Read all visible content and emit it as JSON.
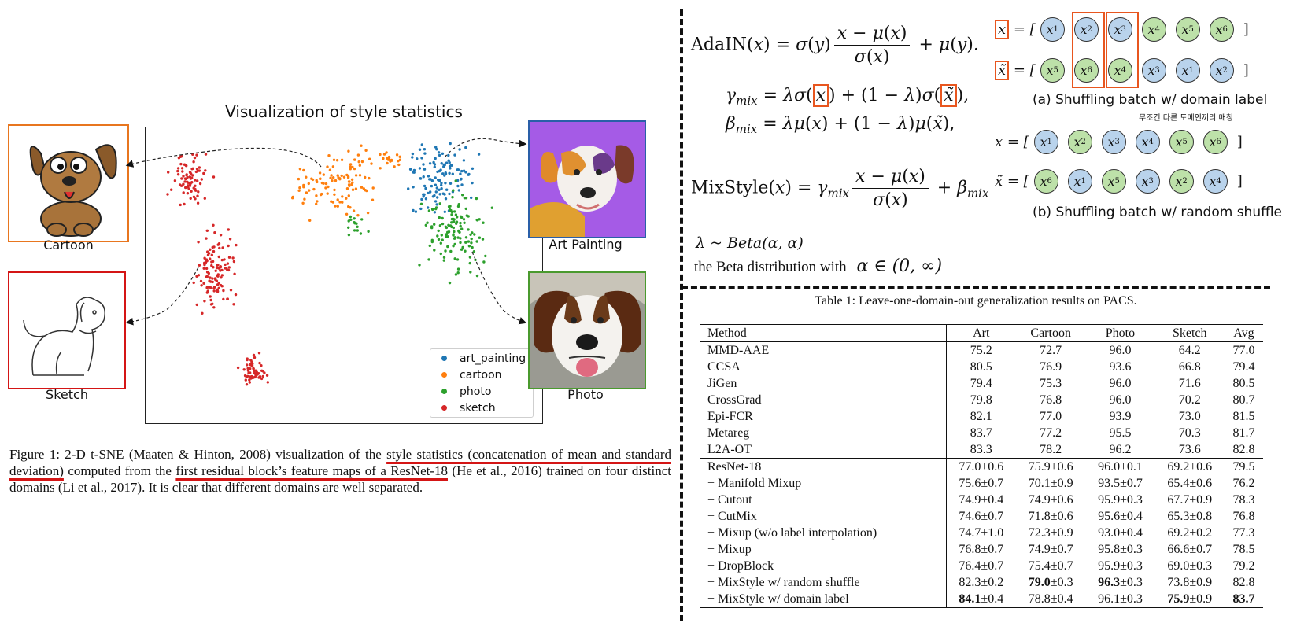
{
  "left": {
    "plot_title": "Visualization of style statistics",
    "images": {
      "cartoon": "Cartoon",
      "sketch": "Sketch",
      "art_painting": "Art Painting",
      "photo": "Photo"
    },
    "legend": [
      "art_painting",
      "cartoon",
      "photo",
      "sketch"
    ],
    "colors": {
      "art_painting": "#1f77b4",
      "cartoon": "#ff7f0e",
      "photo": "#2ca02c",
      "sketch": "#d62728",
      "cartoon_border": "#e8761f",
      "sketch_border": "#d41515",
      "art_border": "#2a5fa8",
      "photo_border": "#4a9a2e"
    },
    "caption": {
      "p1": "Figure 1: 2-D t-SNE (Maaten & Hinton, 2008) visualization of the ",
      "u1": "style statistics (concatenation of mean and standard deviation)",
      "p2": " computed from the ",
      "u2": "first residual block’s feature maps of a ResNet-18",
      "p3": " (He et al., 2016) trained on four distinct domains (Li et al., 2017). It is clear that different domains are well separated."
    }
  },
  "equations": {
    "beta_line1": "λ ~ Beta(α, α)",
    "beta_line2_text": "the Beta distribution  with",
    "beta_line2_math": "α ∈ (0, ∞)"
  },
  "shuffle": {
    "a_caption": "(a) Shuffling batch w/ domain label",
    "korean_note": "무조건 다른 도메인끼리 매칭",
    "b_caption": "(b) Shuffling batch w/ random shuffle",
    "a_x": [
      {
        "i": "1",
        "c": "blue"
      },
      {
        "i": "2",
        "c": "blue"
      },
      {
        "i": "3",
        "c": "blue"
      },
      {
        "i": "4",
        "c": "green"
      },
      {
        "i": "5",
        "c": "green"
      },
      {
        "i": "6",
        "c": "green"
      }
    ],
    "a_xt": [
      {
        "i": "5",
        "c": "green"
      },
      {
        "i": "6",
        "c": "green"
      },
      {
        "i": "4",
        "c": "green"
      },
      {
        "i": "3",
        "c": "blue"
      },
      {
        "i": "1",
        "c": "blue"
      },
      {
        "i": "2",
        "c": "blue"
      }
    ],
    "b_x": [
      {
        "i": "1",
        "c": "blue"
      },
      {
        "i": "2",
        "c": "green"
      },
      {
        "i": "3",
        "c": "blue"
      },
      {
        "i": "4",
        "c": "blue"
      },
      {
        "i": "5",
        "c": "green"
      },
      {
        "i": "6",
        "c": "green"
      }
    ],
    "b_xt": [
      {
        "i": "6",
        "c": "green"
      },
      {
        "i": "1",
        "c": "blue"
      },
      {
        "i": "5",
        "c": "green"
      },
      {
        "i": "3",
        "c": "blue"
      },
      {
        "i": "2",
        "c": "green"
      },
      {
        "i": "4",
        "c": "blue"
      }
    ]
  },
  "table": {
    "caption": "Table 1: Leave-one-domain-out generalization results on PACS.",
    "headers": [
      "Method",
      "Art",
      "Cartoon",
      "Photo",
      "Sketch",
      "Avg"
    ],
    "group1": [
      [
        "MMD-AAE",
        "75.2",
        "72.7",
        "96.0",
        "64.2",
        "77.0"
      ],
      [
        "CCSA",
        "80.5",
        "76.9",
        "93.6",
        "66.8",
        "79.4"
      ],
      [
        "JiGen",
        "79.4",
        "75.3",
        "96.0",
        "71.6",
        "80.5"
      ],
      [
        "CrossGrad",
        "79.8",
        "76.8",
        "96.0",
        "70.2",
        "80.7"
      ],
      [
        "Epi-FCR",
        "82.1",
        "77.0",
        "93.9",
        "73.0",
        "81.5"
      ],
      [
        "Metareg",
        "83.7",
        "77.2",
        "95.5",
        "70.3",
        "81.7"
      ],
      [
        "L2A-OT",
        "83.3",
        "78.2",
        "96.2",
        "73.6",
        "82.8"
      ]
    ],
    "group2": [
      [
        "ResNet-18",
        "77.0±0.6",
        "75.9±0.6",
        "96.0±0.1",
        "69.2±0.6",
        "79.5"
      ],
      [
        "+ Manifold Mixup",
        "75.6±0.7",
        "70.1±0.9",
        "93.5±0.7",
        "65.4±0.6",
        "76.2"
      ],
      [
        "+ Cutout",
        "74.9±0.4",
        "74.9±0.6",
        "95.9±0.3",
        "67.7±0.9",
        "78.3"
      ],
      [
        "+ CutMix",
        "74.6±0.7",
        "71.8±0.6",
        "95.6±0.4",
        "65.3±0.8",
        "76.8"
      ],
      [
        "+ Mixup (w/o label interpolation)",
        "74.7±1.0",
        "72.3±0.9",
        "93.0±0.4",
        "69.2±0.2",
        "77.3"
      ],
      [
        "+ Mixup",
        "76.8±0.7",
        "74.9±0.7",
        "95.8±0.3",
        "66.6±0.7",
        "78.5"
      ],
      [
        "+ DropBlock",
        "76.4±0.7",
        "75.4±0.7",
        "95.9±0.3",
        "69.0±0.3",
        "79.2"
      ],
      [
        "+ MixStyle w/ random shuffle",
        "82.3±0.2",
        "79.0±0.3",
        "96.3±0.3",
        "73.8±0.9",
        "82.8"
      ],
      [
        "+ MixStyle w/ domain label",
        "84.1±0.4",
        "78.8±0.4",
        "96.1±0.3",
        "75.9±0.9",
        "83.7"
      ]
    ],
    "bold": [
      [
        7,
        2
      ],
      [
        7,
        3
      ],
      [
        8,
        1
      ],
      [
        8,
        4
      ],
      [
        8,
        5
      ]
    ]
  }
}
